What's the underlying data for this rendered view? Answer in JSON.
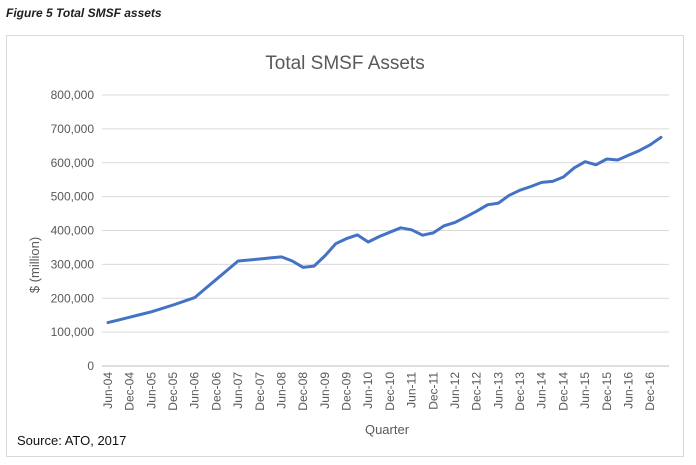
{
  "figure_caption": "Figure 5 Total SMSF assets",
  "source_note": "Source: ATO, 2017",
  "colors": {
    "line": "#4472C4",
    "grid": "#d9d9d9",
    "text": "#595959"
  },
  "chart_data": {
    "type": "line",
    "title": "Total SMSF Assets",
    "xlabel": "Quarter",
    "ylabel": "$ (million)",
    "ylim": [
      0,
      800000
    ],
    "yticks": [
      "0",
      "100,000",
      "200,000",
      "300,000",
      "400,000",
      "500,000",
      "600,000",
      "700,000",
      "800,000"
    ],
    "grid": true,
    "legend": "none",
    "x_tick_labels": [
      "Jun-04",
      "Dec-04",
      "Jun-05",
      "Dec-05",
      "Jun-06",
      "Dec-06",
      "Jun-07",
      "Dec-07",
      "Jun-08",
      "Dec-08",
      "Jun-09",
      "Dec-09",
      "Jun-10",
      "Dec-10",
      "Jun-11",
      "Dec-11",
      "Jun-12",
      "Dec-12",
      "Jun-13",
      "Dec-13",
      "Jun-14",
      "Dec-14",
      "Jun-15",
      "Dec-15",
      "Jun-16",
      "Dec-16"
    ],
    "x": [
      "Jun-04",
      "Sep-04",
      "Dec-04",
      "Mar-05",
      "Jun-05",
      "Sep-05",
      "Dec-05",
      "Mar-06",
      "Jun-06",
      "Sep-06",
      "Dec-06",
      "Mar-07",
      "Jun-07",
      "Sep-07",
      "Dec-07",
      "Mar-08",
      "Jun-08",
      "Sep-08",
      "Dec-08",
      "Mar-09",
      "Jun-09",
      "Sep-09",
      "Dec-09",
      "Mar-10",
      "Jun-10",
      "Sep-10",
      "Dec-10",
      "Mar-11",
      "Jun-11",
      "Sep-11",
      "Dec-11",
      "Mar-12",
      "Jun-12",
      "Sep-12",
      "Dec-12",
      "Mar-13",
      "Jun-13",
      "Sep-13",
      "Dec-13",
      "Mar-14",
      "Jun-14",
      "Sep-14",
      "Dec-14",
      "Mar-15",
      "Jun-15",
      "Sep-15",
      "Dec-15",
      "Mar-16",
      "Jun-16",
      "Sep-16",
      "Dec-16",
      "Mar-17"
    ],
    "values": [
      128000,
      136000,
      144000,
      152000,
      160000,
      170000,
      180000,
      191000,
      202000,
      229000,
      256000,
      283000,
      310000,
      313000,
      316000,
      319000,
      322000,
      310000,
      291000,
      295000,
      325000,
      361000,
      376000,
      387000,
      366000,
      382000,
      395000,
      408000,
      402000,
      386000,
      393000,
      414000,
      424000,
      440000,
      457000,
      476000,
      481000,
      504000,
      519000,
      530000,
      542000,
      545000,
      558000,
      585000,
      603000,
      594000,
      611000,
      608000,
      622000,
      636000,
      653000,
      675000
    ]
  }
}
